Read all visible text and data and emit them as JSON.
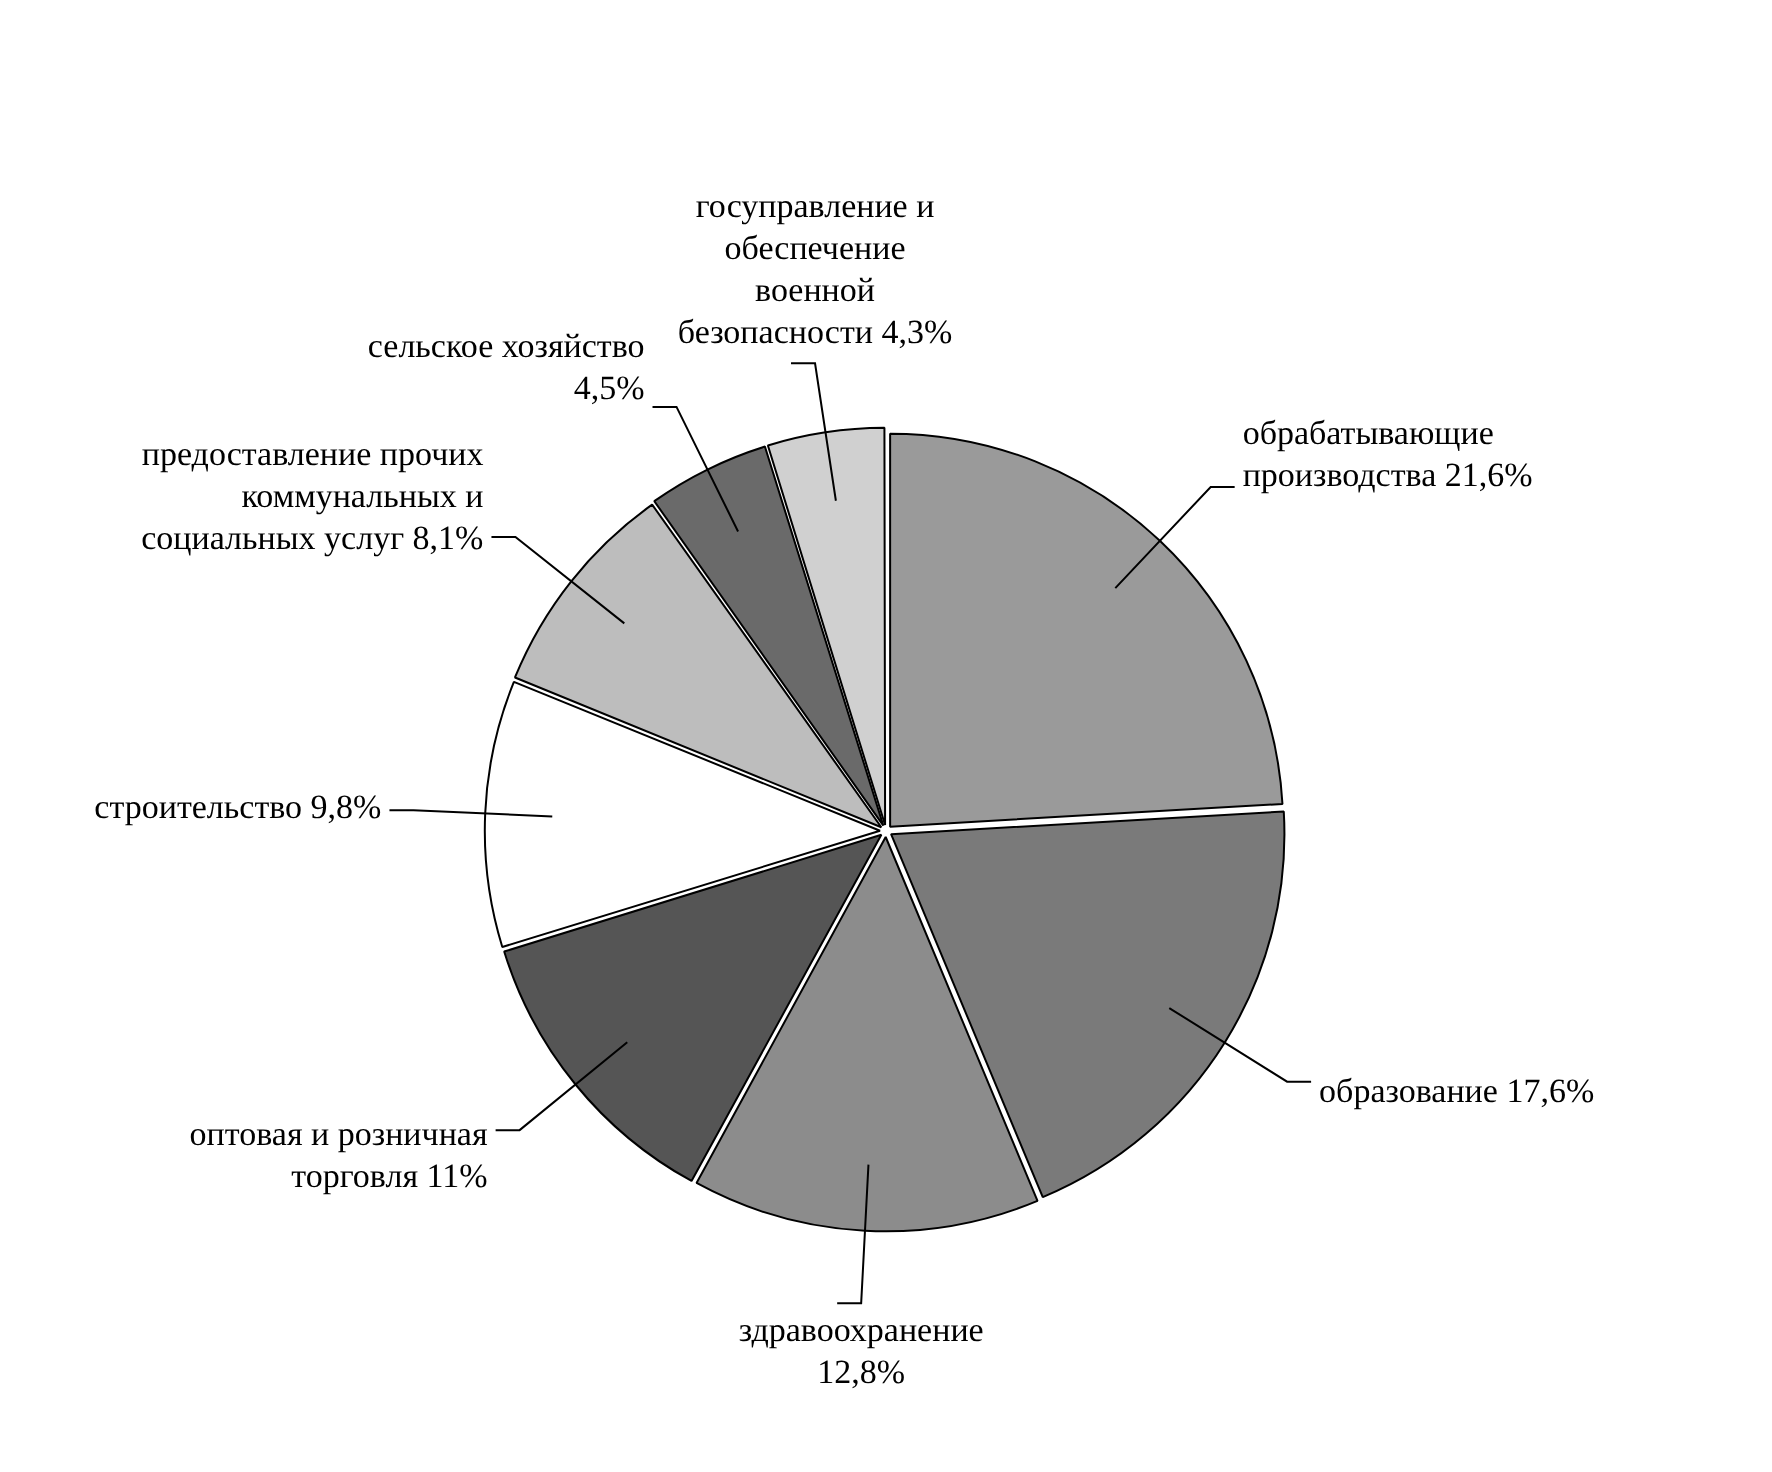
{
  "chart_data": {
    "type": "pie",
    "categories": [
      "обрабатывающие производства",
      "образование",
      "здравоохранение",
      "оптовая и розничная торговля",
      "строительство",
      "предоставление прочих коммунальных и социальных услуг",
      "сельское хозяйство",
      "госуправление и обеспечение военной безопасности"
    ],
    "values": [
      21.6,
      17.6,
      12.8,
      11,
      9.8,
      8.1,
      4.5,
      4.3
    ],
    "value_labels": [
      "21,6%",
      "17,6%",
      "12,8%",
      "11%",
      "9,8%",
      "8,1%",
      "4,5%",
      "4,3%"
    ],
    "colors": [
      "#9a9a9a",
      "#7a7a7a",
      "#8c8c8c",
      "#555555",
      "#ffffff",
      "#bdbdbd",
      "#6a6a6a",
      "#d0d0d0"
    ],
    "legend": false
  }
}
